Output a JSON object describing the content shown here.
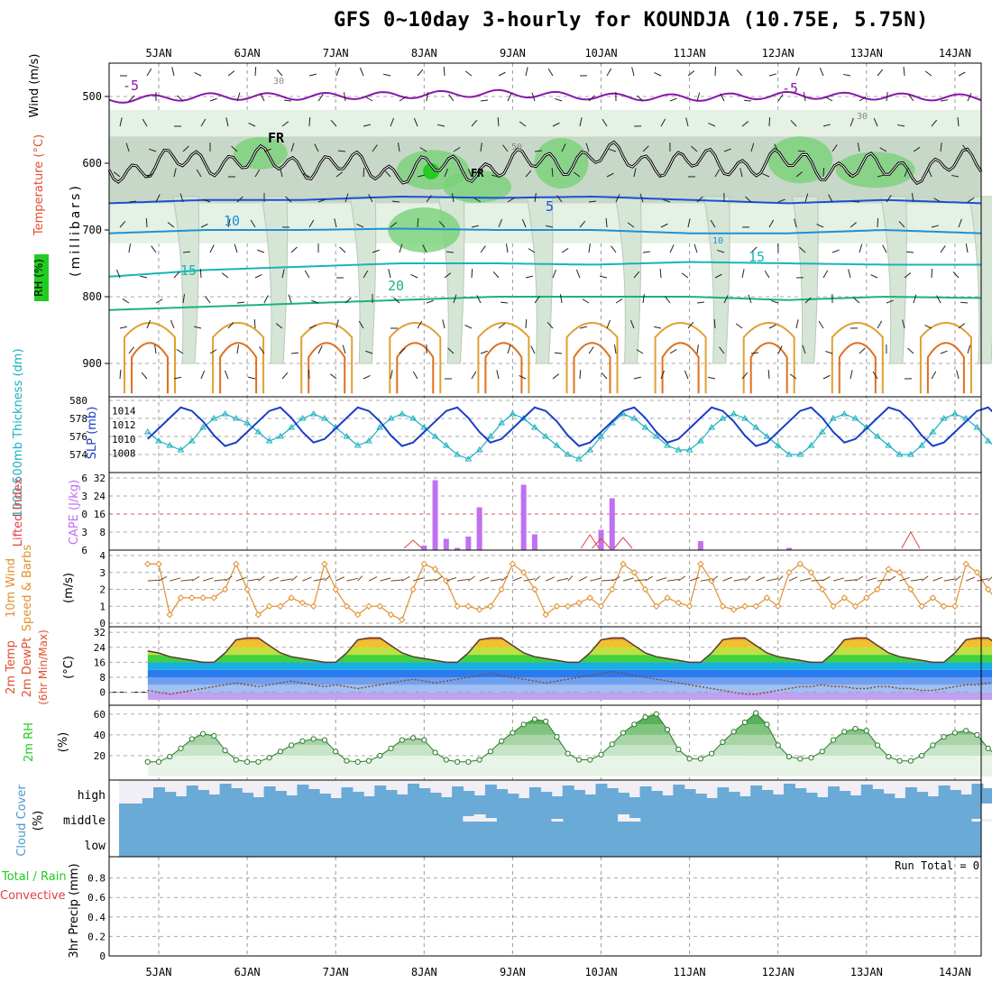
{
  "header": {
    "title": "GFS 0~10day 3-hourly for KOUNDJA (10.75E, 5.75N)"
  },
  "axes": {
    "dates": [
      "5JAN",
      "6JAN",
      "7JAN",
      "8JAN",
      "9JAN",
      "10JAN",
      "11JAN",
      "12JAN",
      "13JAN",
      "14JAN"
    ]
  },
  "chart_data": [
    {
      "panel": "upper-air",
      "type": "heatmap",
      "yunit_label": "(millibars)",
      "legend_labels": [
        "Wind (m/s)",
        "Temperature (°C)",
        "RH (%)"
      ],
      "y_ticks": [
        500,
        600,
        700,
        800,
        900
      ],
      "ylim": [
        450,
        950
      ],
      "contour_labels": [
        "-5",
        "FR",
        "5",
        "10",
        "15",
        "20",
        "30",
        "50",
        "10",
        "30"
      ],
      "isotherm_levels_mb": {
        "-5": [
          505,
          500,
          500,
          498,
          495,
          500,
          502,
          498,
          500,
          502
        ],
        "FR": [
          610,
          595,
          600,
          610,
          605,
          590,
          600,
          600,
          610,
          600
        ],
        "5": [
          660,
          655,
          655,
          650,
          652,
          650,
          655,
          660,
          655,
          660
        ],
        "10": [
          705,
          700,
          700,
          698,
          700,
          700,
          705,
          705,
          700,
          705
        ],
        "15": [
          770,
          760,
          755,
          750,
          750,
          752,
          748,
          750,
          752,
          752
        ],
        "20": [
          820,
          815,
          810,
          805,
          800,
          800,
          800,
          805,
          800,
          802
        ]
      }
    },
    {
      "panel": "thickness-slp",
      "type": "line",
      "left_label": "1000-500mb Thickness (dm)",
      "right_label": "SLP (mb)",
      "left_ticks": [
        574,
        576,
        578,
        580
      ],
      "right_ticks": [
        1008,
        1010,
        1012,
        1014
      ],
      "series": [
        {
          "name": "Thickness",
          "values": [
            576.5,
            575.5,
            575,
            574.5,
            575.5,
            577,
            578,
            578.5,
            578,
            577.5,
            576.5,
            575.5,
            576,
            577,
            578,
            578.5,
            578,
            577,
            576,
            575,
            575.5,
            577,
            578,
            578.5,
            578,
            577,
            576,
            575,
            574,
            573.5,
            574.5,
            576,
            577.5,
            578.5,
            578,
            577,
            576,
            575,
            574,
            573.5,
            574.5,
            576,
            577.5,
            578.5,
            578,
            577,
            576,
            575,
            574.5,
            574.5,
            575.5,
            577,
            578,
            578.5,
            578,
            577,
            576,
            575,
            574,
            574,
            575,
            576.5,
            578,
            578.5,
            578,
            577,
            576,
            575,
            574,
            574,
            575,
            576.5,
            578,
            578.5,
            578,
            577,
            575.5,
            574.5,
            574,
            575
          ]
        },
        {
          "name": "SLP",
          "values": [
            1010,
            1011.5,
            1013,
            1014.5,
            1014,
            1012.5,
            1010.5,
            1009,
            1009.5,
            1011,
            1012.5,
            1014,
            1014.5,
            1013,
            1011,
            1009.5,
            1010,
            1011.5,
            1013,
            1014.5,
            1014,
            1012.5,
            1010.5,
            1009,
            1009.5,
            1011,
            1012.5,
            1014,
            1014.5,
            1013,
            1011,
            1009.5,
            1010,
            1011.5,
            1013,
            1014.5,
            1014,
            1012.5,
            1010.5,
            1009,
            1009.5,
            1011,
            1012.5,
            1014,
            1014.5,
            1013,
            1011,
            1009.5,
            1010,
            1011.5,
            1013,
            1014.5,
            1014,
            1012.5,
            1010.5,
            1009,
            1009.5,
            1011,
            1012.5,
            1014,
            1014.5,
            1013,
            1011,
            1009.5,
            1010,
            1011.5,
            1013,
            1014.5,
            1014,
            1012.5,
            1010.5,
            1009,
            1009.5,
            1011,
            1012.5,
            1014,
            1014.5,
            1013,
            1011,
            1010
          ]
        }
      ]
    },
    {
      "panel": "cape-li",
      "type": "bar",
      "left_label": "Lifted Index",
      "right_label": "CAPE (J/kg)",
      "left_ticks": [
        -6,
        -3,
        0,
        3,
        6
      ],
      "right_ticks": [
        8,
        16,
        24,
        32
      ],
      "cape_bars": [
        {
          "t": 25.0,
          "value": 2
        },
        {
          "t": 26.0,
          "value": 31
        },
        {
          "t": 27.0,
          "value": 5
        },
        {
          "t": 28.0,
          "value": 1
        },
        {
          "t": 29.0,
          "value": 6
        },
        {
          "t": 30.0,
          "value": 19
        },
        {
          "t": 34.0,
          "value": 29
        },
        {
          "t": 35.0,
          "value": 7
        },
        {
          "t": 41.0,
          "value": 9
        },
        {
          "t": 42.0,
          "value": 23
        },
        {
          "t": 50.0,
          "value": 4
        },
        {
          "t": 58.0,
          "value": 1
        }
      ]
    },
    {
      "panel": "wind-10m",
      "type": "line",
      "label": "10m Wind Speed & Barbs",
      "unit": "(m/s)",
      "y_ticks": [
        0,
        1,
        2,
        3,
        4
      ],
      "ylim": [
        0,
        4
      ],
      "series": [
        {
          "name": "10m Wind Speed",
          "values": [
            3.5,
            3.5,
            0.5,
            1.5,
            1.5,
            1.5,
            1.5,
            2.0,
            3.5,
            2.0,
            0.5,
            1.0,
            1.0,
            1.5,
            1.2,
            1.0,
            3.5,
            2.0,
            1.0,
            0.5,
            1.0,
            1.0,
            0.5,
            0.2,
            2.0,
            3.5,
            3.2,
            2.5,
            1.0,
            1.0,
            0.8,
            1.0,
            2.0,
            3.5,
            3.0,
            2.0,
            0.5,
            1.0,
            1.0,
            1.2,
            1.5,
            1.0,
            2.0,
            3.5,
            3.0,
            2.0,
            1.0,
            1.5,
            1.2,
            1.0,
            3.5,
            2.5,
            1.0,
            0.8,
            1.0,
            1.0,
            1.5,
            1.0,
            3.0,
            3.5,
            3.0,
            2.0,
            1.0,
            1.5,
            1.0,
            1.5,
            2.0,
            3.2,
            3.0,
            2.0,
            1.0,
            1.5,
            1.0,
            1.0,
            3.5,
            3.0,
            2.0,
            1.2,
            1.0,
            1.5
          ]
        }
      ]
    },
    {
      "panel": "temperature",
      "type": "area",
      "label": "2m Temp 2m DewPt (6hr Min/Max)",
      "unit": "(°C)",
      "y_ticks": [
        0,
        8,
        16,
        24,
        32
      ],
      "ylim": [
        -4,
        34
      ],
      "series": [
        {
          "name": "2m Temp",
          "values": [
            22,
            21,
            19,
            18,
            17,
            16,
            16,
            21,
            28,
            29,
            29,
            25,
            21,
            19,
            18,
            17,
            16,
            16,
            21,
            28,
            29,
            29,
            25,
            21,
            19,
            18,
            17,
            16,
            16,
            21,
            28,
            29,
            29,
            25,
            21,
            19,
            18,
            17,
            16,
            16,
            21,
            28,
            29,
            29,
            25,
            21,
            19,
            18,
            17,
            16,
            16,
            21,
            28,
            29,
            29,
            25,
            21,
            19,
            18,
            17,
            16,
            16,
            21,
            28,
            29,
            29,
            25,
            21,
            19,
            18,
            17,
            16,
            16,
            21,
            28,
            29,
            29,
            25,
            21,
            17
          ]
        },
        {
          "name": "2m DewPt",
          "values": [
            1,
            0,
            -1,
            0,
            1,
            2,
            3,
            4,
            5,
            4,
            3,
            4,
            5,
            6,
            5,
            4,
            3,
            4,
            3,
            2,
            3,
            4,
            5,
            6,
            7,
            6,
            5,
            6,
            7,
            8,
            9,
            10,
            9,
            8,
            7,
            6,
            5,
            6,
            7,
            8,
            9,
            10,
            11,
            10,
            9,
            8,
            7,
            6,
            5,
            4,
            3,
            2,
            1,
            0,
            -1,
            -1,
            0,
            1,
            2,
            3,
            3,
            4,
            3,
            3,
            2,
            2,
            3,
            3,
            2,
            2,
            1,
            1,
            2,
            3,
            4,
            4,
            5,
            6,
            5,
            5
          ]
        }
      ]
    },
    {
      "panel": "rh-2m",
      "type": "area",
      "label": "2m RH",
      "unit": "(%)",
      "y_ticks": [
        20,
        40,
        60
      ],
      "ylim": [
        0,
        65
      ],
      "series": [
        {
          "name": "2m RH",
          "values": [
            14,
            14,
            19,
            27,
            36,
            41,
            39,
            25,
            16,
            14,
            14,
            18,
            24,
            30,
            34,
            36,
            35,
            24,
            15,
            14,
            15,
            20,
            27,
            35,
            37,
            35,
            23,
            16,
            14,
            14,
            16,
            24,
            34,
            42,
            50,
            55,
            53,
            38,
            22,
            16,
            16,
            21,
            31,
            42,
            50,
            57,
            60,
            45,
            26,
            17,
            17,
            22,
            33,
            43,
            52,
            61,
            50,
            30,
            19,
            17,
            18,
            24,
            35,
            43,
            46,
            44,
            30,
            19,
            15,
            15,
            20,
            30,
            38,
            42,
            44,
            40,
            27,
            18,
            14,
            14
          ]
        }
      ]
    },
    {
      "panel": "cloud-cover",
      "type": "bar",
      "label": "Cloud Cover",
      "unit": "(%)",
      "levels": [
        "high",
        "middle",
        "low"
      ]
    },
    {
      "panel": "precip",
      "type": "bar",
      "left_label": "3hr Precip (mm)",
      "legend_labels": [
        "Total / Rain",
        "Convective"
      ],
      "y_ticks": [
        0,
        0.2,
        0.4,
        0.6,
        0.8
      ],
      "ylim": [
        0,
        1
      ],
      "run_total": "Run Total = 0",
      "values": []
    }
  ]
}
